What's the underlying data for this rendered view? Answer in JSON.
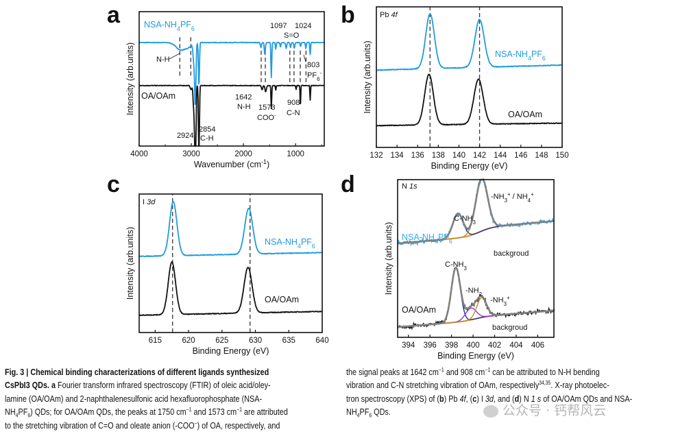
{
  "figure": {
    "panel_labels": [
      "a",
      "b",
      "c",
      "d"
    ]
  },
  "chart_data": [
    {
      "panel": "a",
      "type": "line",
      "xlabel": "Wavenumber (cm^{-1})",
      "ylabel": "Intensity (arb.units)",
      "xlim": [
        4000,
        450
      ],
      "ylim": [
        0,
        10
      ],
      "xticks": [
        4000,
        3000,
        2000,
        1000
      ],
      "minor_step": 500,
      "series": [
        {
          "name": "NSA-NH_{4}PF_{6}",
          "color": "#1e9be0",
          "baseline": 7.7,
          "noise": 0.04,
          "peaks": [
            [
              3200,
              -0.55,
              90
            ],
            [
              3050,
              -0.25,
              60
            ],
            [
              2955,
              -1.2,
              14
            ],
            [
              2924,
              -4.6,
              13
            ],
            [
              2854,
              -3.2,
              10
            ],
            [
              1665,
              -0.35,
              10
            ],
            [
              1590,
              -0.9,
              10
            ],
            [
              1465,
              -2.6,
              8
            ],
            [
              1380,
              -0.5,
              8
            ],
            [
              1290,
              -0.35,
              8
            ],
            [
              1180,
              -0.45,
              10
            ],
            [
              1097,
              -0.35,
              10
            ],
            [
              1024,
              -0.4,
              10
            ],
            [
              905,
              -0.3,
              8
            ],
            [
              803,
              -0.45,
              8
            ],
            [
              720,
              -0.9,
              7
            ]
          ]
        },
        {
          "name": "OA/OAm",
          "color": "#111111",
          "baseline": 4.5,
          "noise": 0.04,
          "peaks": [
            [
              3005,
              -0.3,
              15
            ],
            [
              2955,
              -1.5,
              12
            ],
            [
              2924,
              -7.9,
              12
            ],
            [
              2854,
              -6.2,
              9
            ],
            [
              1642,
              -0.3,
              12
            ],
            [
              1573,
              -0.45,
              14
            ],
            [
              1465,
              -1.7,
              7
            ],
            [
              1380,
              -0.35,
              7
            ],
            [
              990,
              -0.3,
              6
            ],
            [
              908,
              -1.6,
              6
            ],
            [
              720,
              -1.1,
              6
            ]
          ]
        }
      ],
      "reference_lines": [
        [
          3220,
          5.2,
          8.1
        ],
        [
          3010,
          5.2,
          8.1
        ],
        [
          1660,
          4.6,
          7.1
        ],
        [
          1580,
          4.6,
          7.1
        ],
        [
          1110,
          4.6,
          7.1
        ],
        [
          1030,
          4.6,
          7.1
        ],
        [
          910,
          4.6,
          7.1
        ],
        [
          800,
          4.6,
          7.1
        ]
      ],
      "annotations": {
        "legend_top": "NSA-NH_{4}PF_{6}",
        "legend_bottom": "OA/OAm",
        "nh_top": "N-H",
        "p1097": "1097",
        "p1024": "1024",
        "so": "S=O",
        "p803": "803",
        "pf6": "PF_{6}^{-}",
        "p1642": "1642",
        "nh_bottom": "N-H",
        "p1573": "1573",
        "coo": "COO^{-}",
        "p908": "908",
        "cn": "C-N",
        "p2924": "2924",
        "p2854": "2854",
        "ch": "C-H"
      }
    },
    {
      "panel": "b",
      "type": "line",
      "title": "Pb /{4f}",
      "xlabel": "Binding Energy (eV)",
      "ylabel": "Intensity (arb.units)",
      "xlim": [
        132,
        150
      ],
      "ylim": [
        0,
        10
      ],
      "xticks": [
        132,
        134,
        136,
        138,
        140,
        142,
        144,
        146,
        148,
        150
      ],
      "series": [
        {
          "name": "NSA-NH_{4}PF_{6}",
          "color": "#1e9be0",
          "baseline": 5.5,
          "slope": 0.02,
          "noise": 0.05,
          "peaks": [
            [
              137.2,
              3.9,
              0.42
            ],
            [
              142.0,
              3.4,
              0.45
            ]
          ]
        },
        {
          "name": "OA/OAm",
          "color": "#111111",
          "baseline": 1.55,
          "slope": 0.01,
          "noise": 0.05,
          "peaks": [
            [
              137.1,
              3.6,
              0.42
            ],
            [
              141.9,
              3.2,
              0.45
            ]
          ]
        }
      ],
      "reference_lines": [
        [
          137.2
        ],
        [
          142.0
        ]
      ]
    },
    {
      "panel": "c",
      "type": "line",
      "title": "I /{3d}",
      "xlabel": "Binding Energy (eV)",
      "ylabel": "Intensity (arb.units)",
      "xlim": [
        612.6,
        640
      ],
      "ylim": [
        0,
        10
      ],
      "xticks": [
        615,
        620,
        625,
        630,
        635,
        640
      ],
      "series": [
        {
          "name": "NSA-NH_{4}PF_{6}",
          "color": "#1e9be0",
          "baseline": 5.5,
          "slope": 0.01,
          "noise": 0.05,
          "peaks": [
            [
              617.7,
              3.9,
              0.55
            ],
            [
              629.0,
              3.3,
              0.6
            ]
          ]
        },
        {
          "name": "OA/OAm",
          "color": "#111111",
          "baseline": 1.25,
          "slope": 0.01,
          "noise": 0.05,
          "peaks": [
            [
              617.5,
              3.8,
              0.55
            ],
            [
              628.9,
              3.3,
              0.6
            ]
          ]
        }
      ],
      "reference_lines": [
        [
          617.6
        ],
        [
          629.2
        ]
      ]
    },
    {
      "panel": "d",
      "type": "line",
      "title": "N /{1s}",
      "xlabel": "Binding Energy (eV)",
      "ylabel": "Intensity (arb.units)",
      "xlim": [
        393,
        407.5
      ],
      "ylim": [
        0,
        10
      ],
      "xticks": [
        394,
        396,
        398,
        400,
        402,
        404,
        406
      ],
      "fit_color": "#808080",
      "background_color": "#f08a24",
      "series": [
        {
          "name": "NSA-NH_{4}PF_{6}",
          "color": "#35a8e6",
          "baseline": 5.95,
          "slope": 0.06,
          "step": 0.55,
          "step_center": 400.6,
          "noise": 0.12,
          "peaks": [
            [
              398.6,
              1.55,
              0.48,
              "C-NH_{3}",
              "#1f2f9e"
            ],
            [
              400.8,
              3.35,
              0.55,
              "-NH_{3}^{+} / NH_{4}^{+}",
              "#b8912f"
            ]
          ]
        },
        {
          "name": "OA/OAm",
          "color": "#111111",
          "baseline": 0.65,
          "slope": 0.055,
          "step": 0.25,
          "step_center": 400.2,
          "noise": 0.1,
          "peaks": [
            [
              398.4,
              3.45,
              0.42,
              "C-NH_{3}",
              "#1f2f9e"
            ],
            [
              399.8,
              0.75,
              0.5,
              "-NH_{2}",
              "#9b30d0"
            ],
            [
              400.8,
              1.25,
              0.45,
              "-NH_{3}^{+}",
              "#b8912f"
            ]
          ]
        }
      ],
      "annotations": {
        "cnh3_top": "C-NH_{3}",
        "nh3_nh4": "-NH_{3}^{+} / NH_{4}^{+}",
        "bg_top": "backgroud",
        "legend_top": "NSA-NH_{4}PF_{6}",
        "cnh3_bottom": "C-NH_{3}",
        "nh2": "-NH_{2}",
        "nh3": "-NH_{3}^{+}",
        "legend_bottom": "OA/OAm",
        "bg_bottom": "backgroud"
      }
    }
  ],
  "caption": {
    "left": [
      [
        [
          "b",
          "Fig. 3 | Chemical binding characterizations of different ligands synthesized"
        ]
      ],
      [
        [
          "b",
          "CsPbI3 QDs. a"
        ],
        [
          "n",
          " Fourier transform infrared spectroscopy (FTIR) of oleic acid/oley-"
        ]
      ],
      [
        [
          "n",
          "lamine (OA/OAm) and 2-naphthalenesulfonic acid hexafluorophosphate (NSA-"
        ]
      ],
      [
        [
          "n",
          "NH"
        ],
        [
          "sub",
          "4"
        ],
        [
          "n",
          "PF"
        ],
        [
          "sub",
          "6"
        ],
        [
          "n",
          ") QDs; for OA/OAm QDs, the peaks at 1750 cm"
        ],
        [
          "sup",
          "−1"
        ],
        [
          "n",
          " and 1573 cm"
        ],
        [
          "sup",
          "−1"
        ],
        [
          "n",
          " are attributed"
        ]
      ],
      [
        [
          "n",
          "to the stretching vibration of C=O and oleate anion (-COO"
        ],
        [
          "sup",
          "−"
        ],
        [
          "n",
          ") of OA, respectively, and"
        ]
      ]
    ],
    "right": [
      [
        [
          "n",
          "the signal peaks at 1642 cm"
        ],
        [
          "sup",
          "−1"
        ],
        [
          "n",
          " and 908 cm"
        ],
        [
          "sup",
          "−1"
        ],
        [
          "n",
          " can be attributed to N-H bending"
        ]
      ],
      [
        [
          "n",
          "vibration and C-N stretching vibration of OAm, respectively"
        ],
        [
          "sup",
          "34,35"
        ],
        [
          "n",
          ". X-ray photoelec-"
        ]
      ],
      [
        [
          "n",
          "tron spectroscopy (XPS) of ("
        ],
        [
          "b",
          "b"
        ],
        [
          "n",
          ") Pb "
        ],
        [
          "i",
          "4f"
        ],
        [
          "n",
          ", ("
        ],
        [
          "b",
          "c"
        ],
        [
          "n",
          ") I "
        ],
        [
          "i",
          "3d"
        ],
        [
          "n",
          ", and ("
        ],
        [
          "b",
          "d"
        ],
        [
          "n",
          ") N "
        ],
        [
          "i",
          "1 s"
        ],
        [
          "n",
          " of OA/OAm QDs and NSA-"
        ]
      ],
      [
        [
          "n",
          "NH"
        ],
        [
          "sub",
          "4"
        ],
        [
          "n",
          "PF"
        ],
        [
          "sub",
          "6"
        ],
        [
          "n",
          " QDs."
        ]
      ]
    ]
  },
  "watermark": "公众号 · 钙帮风云"
}
